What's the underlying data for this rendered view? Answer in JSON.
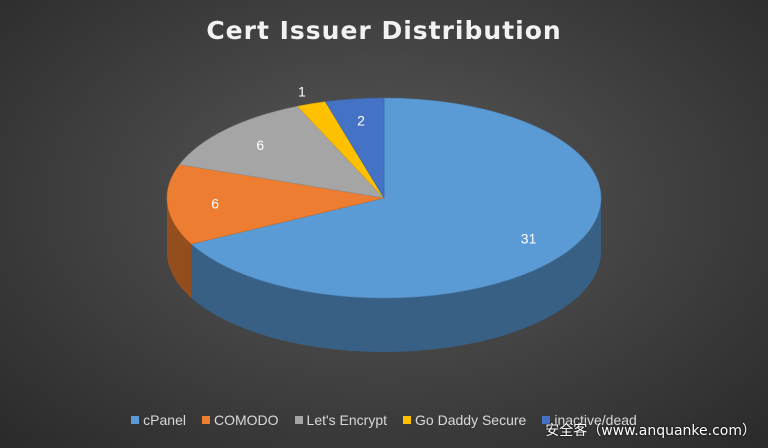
{
  "chart_data": {
    "type": "pie",
    "title": "Cert Issuer Distribution",
    "categories": [
      "cPanel",
      "COMODO",
      "Let's Encrypt",
      "Go Daddy Secure",
      "inactive/dead"
    ],
    "values": [
      31,
      6,
      6,
      1,
      2
    ],
    "colors": [
      "#5b9bd5",
      "#ed7d31",
      "#a5a5a5",
      "#ffc000",
      "#4472c4"
    ],
    "data_labels": true,
    "legend_position": "bottom",
    "style": "3d"
  },
  "watermark": "安全客（www.anquanke.com）"
}
